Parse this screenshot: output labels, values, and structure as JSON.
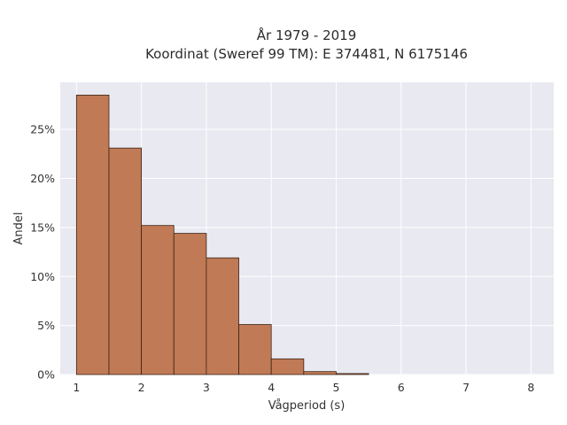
{
  "chart_data": {
    "type": "bar",
    "title_lines": [
      "År 1979 - 2019",
      "Koordinat (Sweref 99 TM): E 374481, N 6175146"
    ],
    "xlabel": "Vågperiod (s)",
    "ylabel": "Andel",
    "xlim": [
      0.75,
      8.35
    ],
    "ylim": [
      0,
      0.298
    ],
    "x_ticks": [
      1,
      2,
      3,
      4,
      5,
      6,
      7,
      8
    ],
    "y_ticks": [
      0,
      0.05,
      0.1,
      0.15,
      0.2,
      0.25
    ],
    "y_tick_labels": [
      "0%",
      "5%",
      "10%",
      "15%",
      "20%",
      "25%"
    ],
    "bin_width": 0.5,
    "bins": [
      {
        "start": 1.0,
        "end": 1.5,
        "value": 0.285
      },
      {
        "start": 1.5,
        "end": 2.0,
        "value": 0.231
      },
      {
        "start": 2.0,
        "end": 2.5,
        "value": 0.152
      },
      {
        "start": 2.5,
        "end": 3.0,
        "value": 0.144
      },
      {
        "start": 3.0,
        "end": 3.5,
        "value": 0.119
      },
      {
        "start": 3.5,
        "end": 4.0,
        "value": 0.051
      },
      {
        "start": 4.0,
        "end": 4.5,
        "value": 0.016
      },
      {
        "start": 4.5,
        "end": 5.0,
        "value": 0.003
      },
      {
        "start": 5.0,
        "end": 5.5,
        "value": 0.001
      }
    ],
    "bar_color": "#c07a55",
    "bar_edge_color": "#3a2418",
    "plot_background": "#e9e9f1",
    "grid": true,
    "grid_color": "#ffffff"
  }
}
